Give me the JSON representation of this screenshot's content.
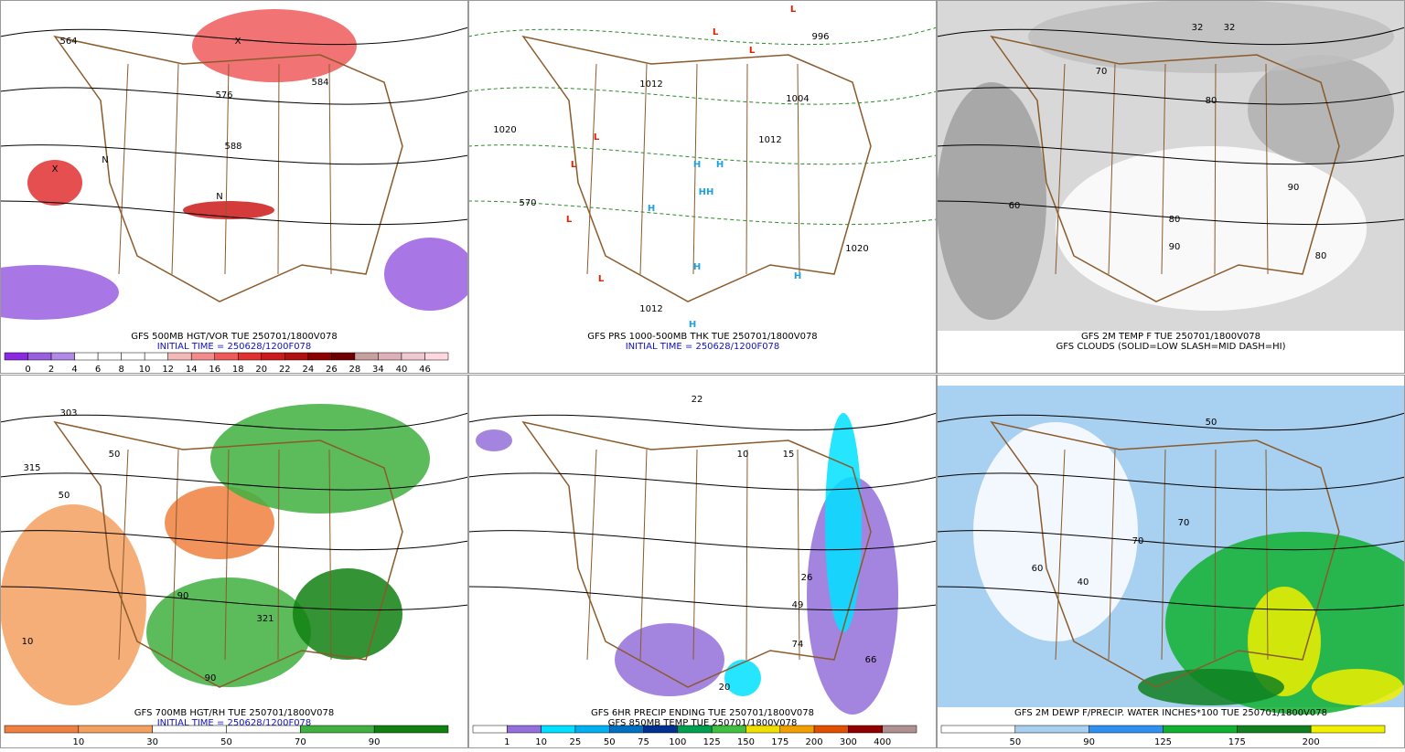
{
  "panels": [
    {
      "captions": [
        "GFS 500MB HGT/VOR TUE 250701/1800V078",
        "INITIAL TIME = 250628/1200F078"
      ],
      "colorbar": {
        "labels": [
          0,
          2,
          4,
          6,
          8,
          10,
          12,
          14,
          16,
          18,
          20,
          22,
          24,
          26,
          28,
          34,
          40,
          46
        ],
        "colors": [
          "#8a2be2",
          "#9a5ee0",
          "#b08ae6",
          "#ffffff",
          "#ffffff",
          "#ffffff",
          "#ffffff",
          "#f4b8b8",
          "#f28c8c",
          "#ee5a5a",
          "#e03030",
          "#cc1a1a",
          "#b01010",
          "#8b0000",
          "#700000",
          "#c8a0a0",
          "#e0b0b8",
          "#f0c8d0",
          "#ffd8e0"
        ]
      },
      "map_labels": [
        "564",
        "584",
        "576",
        "588",
        "X",
        "X",
        "N",
        "N"
      ]
    },
    {
      "captions": [
        "GFS PRS 1000-500MB THK TUE 250701/1800V078",
        "INITIAL TIME = 250628/1200F078"
      ],
      "map_labels": [
        "L",
        "L",
        "L",
        "L",
        "L",
        "L",
        "L",
        "H",
        "H",
        "HH",
        "H",
        "H",
        "H",
        "H",
        "1012",
        "1020",
        "1004",
        "1012",
        "996",
        "1020",
        "1012",
        "570"
      ]
    },
    {
      "captions": [
        "GFS 2M TEMP F TUE 250701/1800V078",
        "GFS CLOUDS (SOLID=LOW SLASH=MID DASH=HI)"
      ],
      "map_labels": [
        "32",
        "32",
        "70",
        "80",
        "90",
        "80",
        "90",
        "80",
        "60"
      ]
    },
    {
      "captions": [
        "GFS 700MB HGT/RH TUE 250701/1800V078",
        "INITIAL TIME = 250628/1200F078"
      ],
      "colorbar": {
        "labels": [
          10,
          30,
          50,
          70,
          90
        ],
        "colors": [
          "#f08040",
          "#f4a060",
          "#ffffff",
          "#ffffff",
          "#40b040",
          "#108010"
        ]
      },
      "map_labels": [
        "303",
        "315",
        "50",
        "50",
        "90",
        "90",
        "10",
        "321"
      ]
    },
    {
      "captions": [
        "GFS 6HR PRECIP ENDING TUE 250701/1800V078",
        "GFS 850MB TEMP TUE 250701/1800V078"
      ],
      "colorbar": {
        "labels": [
          1,
          10,
          25,
          50,
          75,
          100,
          125,
          150,
          175,
          200,
          300,
          400
        ],
        "colors": [
          "#ffffff",
          "#9370db",
          "#00e0ff",
          "#00b0f0",
          "#0070c0",
          "#003090",
          "#00a050",
          "#40c040",
          "#f0e000",
          "#f0a000",
          "#e05000",
          "#900000",
          "#b09090"
        ]
      },
      "map_labels": [
        "74",
        "22",
        "10",
        "15",
        "26",
        "49",
        "66",
        "20"
      ]
    },
    {
      "captions": [
        "GFS 2M DEWP F/PRECIP. WATER INCHES*100 TUE 250701/1800V078"
      ],
      "colorbar": {
        "labels": [
          50,
          90,
          125,
          175,
          200
        ],
        "colors": [
          "#ffffff",
          "#a8d0f0",
          "#3090f0",
          "#10b030",
          "#108020",
          "#f0f000"
        ]
      },
      "map_labels": [
        "50",
        "70",
        "40",
        "60",
        "70"
      ]
    }
  ]
}
